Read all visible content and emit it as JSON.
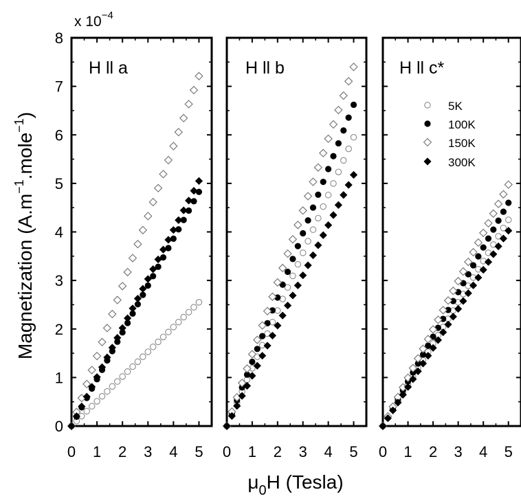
{
  "chart_data": {
    "type": "scatter",
    "multiplier": {
      "base": "x 10",
      "exponent": "−4"
    },
    "ylabel": {
      "main": "Magnetization (A.m",
      "sup1": "−1",
      "mid": ".mole",
      "sup2": "−1",
      "end": ")"
    },
    "xlabel": {
      "mu": "μ",
      "sub": "0",
      "rest": "H (Tesla)"
    },
    "ylim": [
      0,
      8
    ],
    "xlim": [
      0,
      5.5
    ],
    "x_ticks": [
      "0",
      "1",
      "2",
      "3",
      "4",
      "5"
    ],
    "y_ticks": [
      "0",
      "1",
      "2",
      "3",
      "4",
      "5",
      "6",
      "7",
      "8"
    ],
    "legend": {
      "placement": "panel-3 upper-right",
      "entries": [
        {
          "label": "5K",
          "marker": "open-circle"
        },
        {
          "label": "100K",
          "marker": "filled-circle"
        },
        {
          "label": "150K",
          "marker": "open-diamond"
        },
        {
          "label": "300K",
          "marker": "filled-diamond"
        }
      ]
    },
    "panels": [
      {
        "title": "H ll a",
        "series": [
          {
            "name": "5K",
            "slope": 0.51,
            "xmax": 5.0
          },
          {
            "name": "100K",
            "slope": 0.965,
            "xmax": 5.0
          },
          {
            "name": "150K",
            "slope": 1.442,
            "xmax": 5.0
          },
          {
            "name": "300K",
            "slope": 1.01,
            "xmax": 5.0
          }
        ]
      },
      {
        "title": "H ll b",
        "series": [
          {
            "name": "5K",
            "slope": 1.19,
            "xmax": 5.0
          },
          {
            "name": "100K",
            "slope": 1.324,
            "xmax": 5.0
          },
          {
            "name": "150K",
            "slope": 1.48,
            "xmax": 5.0
          },
          {
            "name": "300K",
            "slope": 1.035,
            "xmax": 5.0
          }
        ]
      },
      {
        "title": "H ll c*",
        "series": [
          {
            "name": "5K",
            "slope": 0.85,
            "xmax": 5.0
          },
          {
            "name": "100K",
            "slope": 0.92,
            "xmax": 5.0
          },
          {
            "name": "150K",
            "slope": 0.995,
            "xmax": 5.0
          },
          {
            "name": "300K",
            "slope": 0.805,
            "xmax": 5.0
          }
        ]
      }
    ]
  }
}
